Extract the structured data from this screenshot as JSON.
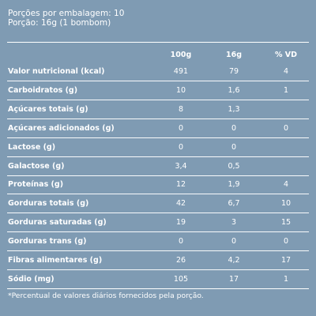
{
  "header": {
    "servings_line": "Porções por embalagem: 10",
    "portion_line": "Porção: 16g (1 bombom)"
  },
  "columns": [
    "100g",
    "16g",
    "% VD"
  ],
  "rows": [
    {
      "label": "Valor nutricional (kcal)",
      "v100": "491",
      "vportion": "79",
      "vd": "4"
    },
    {
      "label": "Carboidratos (g)",
      "v100": "10",
      "vportion": "1,6",
      "vd": "1"
    },
    {
      "label": "Açúcares totais (g)",
      "v100": "8",
      "vportion": "1,3",
      "vd": ""
    },
    {
      "label": "Açúcares adicionados (g)",
      "v100": "0",
      "vportion": "0",
      "vd": "0"
    },
    {
      "label": "Lactose (g)",
      "v100": "0",
      "vportion": "0",
      "vd": ""
    },
    {
      "label": "Galactose (g)",
      "v100": "3,4",
      "vportion": "0,5",
      "vd": ""
    },
    {
      "label": "Proteínas (g)",
      "v100": "12",
      "vportion": "1,9",
      "vd": "4"
    },
    {
      "label": "Gorduras totais (g)",
      "v100": "42",
      "vportion": "6,7",
      "vd": "10"
    },
    {
      "label": "Gorduras saturadas (g)",
      "v100": "19",
      "vportion": "3",
      "vd": "15"
    },
    {
      "label": "Gorduras trans (g)",
      "v100": "0",
      "vportion": "0",
      "vd": "0"
    },
    {
      "label": "Fibras alimentares (g)",
      "v100": "26",
      "vportion": "4,2",
      "vd": "17"
    },
    {
      "label": "Sódio (mg)",
      "v100": "105",
      "vportion": "17",
      "vd": "1"
    }
  ],
  "footnote": "*Percentual de valores diários fornecidos pela porção.",
  "colors": {
    "background": "#7f9bb3",
    "text": "#ffffff"
  }
}
